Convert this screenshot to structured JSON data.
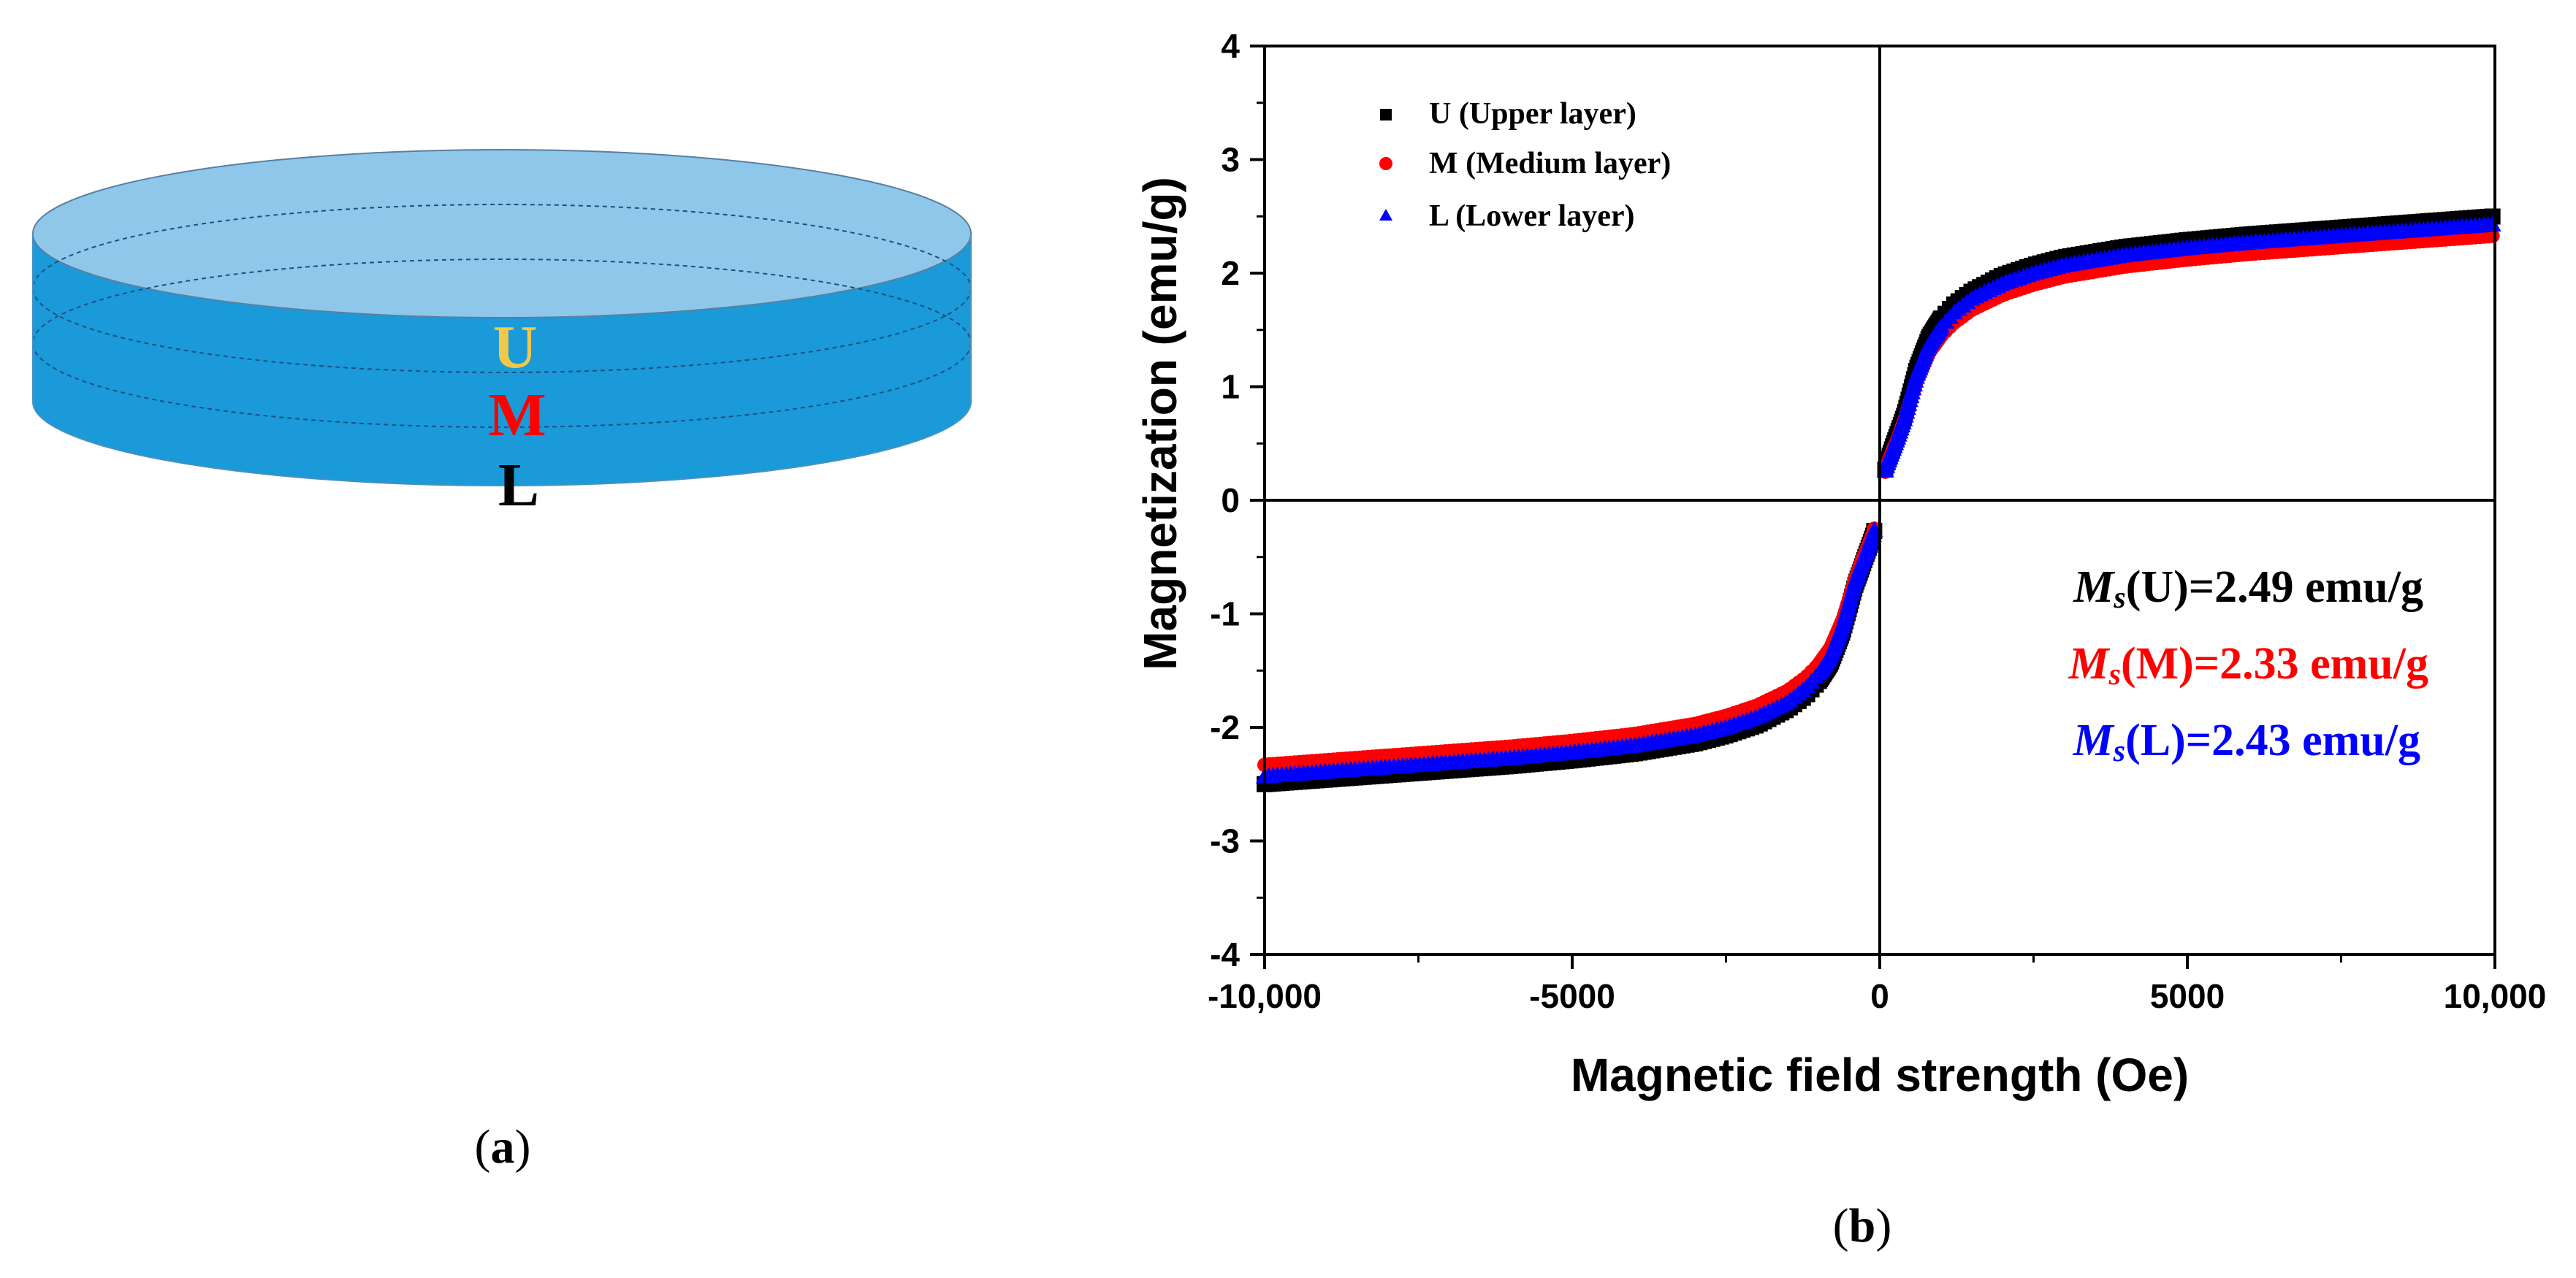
{
  "panel_a": {
    "caption_open": "(",
    "caption_letter": "a",
    "caption_close": ")",
    "layer_labels": {
      "upper": "U",
      "medium": "M",
      "lower": "L"
    },
    "colors": {
      "upper": "#f2c84b",
      "medium": "#ff0000",
      "lower": "#000000",
      "dish_top": "#8ec7ea",
      "dish_side": "#1a9ad8"
    }
  },
  "panel_b": {
    "caption_open": "(",
    "caption_letter": "b",
    "caption_close": ")"
  },
  "chart_data": {
    "type": "scatter",
    "title": "",
    "xlabel": "Magnetic field strength (Oe)",
    "ylabel": "Magnetization (emu/g)",
    "xlim": [
      -10000,
      10000
    ],
    "ylim": [
      -4,
      4
    ],
    "x_ticks": [
      -10000,
      -5000,
      0,
      5000,
      10000
    ],
    "x_tick_labels": [
      "-10,000",
      "-5000",
      "0",
      "5000",
      "10,000"
    ],
    "y_ticks": [
      -4,
      -3,
      -2,
      -1,
      0,
      1,
      2,
      3,
      4
    ],
    "y_tick_labels": [
      "-4",
      "-3",
      "-2",
      "-1",
      "0",
      "1",
      "2",
      "3",
      "4"
    ],
    "legend_position": "top-left",
    "x": [
      -10000,
      -9000,
      -8000,
      -7000,
      -6000,
      -5000,
      -4000,
      -3000,
      -2500,
      -2000,
      -1500,
      -1200,
      -1000,
      -800,
      -600,
      -400,
      -300,
      -200,
      -100,
      0,
      100,
      200,
      300,
      400,
      600,
      800,
      1000,
      1200,
      1500,
      2000,
      2500,
      3000,
      4000,
      5000,
      6000,
      7000,
      8000,
      9000,
      10000
    ],
    "series": [
      {
        "name": "U (Upper layer)",
        "marker": "square",
        "color": "#000000",
        "values": [
          -2.5,
          -2.46,
          -2.42,
          -2.38,
          -2.34,
          -2.29,
          -2.23,
          -2.14,
          -2.07,
          -1.98,
          -1.84,
          -1.72,
          -1.6,
          -1.43,
          -1.15,
          -0.75,
          -0.6,
          -0.45,
          -0.3,
          0,
          0.3,
          0.45,
          0.6,
          0.75,
          1.15,
          1.43,
          1.6,
          1.72,
          1.84,
          1.98,
          2.07,
          2.14,
          2.23,
          2.29,
          2.34,
          2.38,
          2.42,
          2.46,
          2.5
        ]
      },
      {
        "name": "M (Medium layer)",
        "marker": "circle",
        "color": "#ff0000",
        "values": [
          -2.33,
          -2.29,
          -2.25,
          -2.21,
          -2.17,
          -2.12,
          -2.06,
          -1.97,
          -1.9,
          -1.81,
          -1.68,
          -1.56,
          -1.45,
          -1.3,
          -1.05,
          -0.7,
          -0.55,
          -0.42,
          -0.28,
          0,
          0.28,
          0.42,
          0.55,
          0.7,
          1.05,
          1.3,
          1.45,
          1.56,
          1.68,
          1.81,
          1.9,
          1.97,
          2.06,
          2.12,
          2.17,
          2.21,
          2.25,
          2.29,
          2.33
        ]
      },
      {
        "name": "L (Lower layer)",
        "marker": "triangle",
        "color": "#0000ff",
        "values": [
          -2.43,
          -2.39,
          -2.35,
          -2.31,
          -2.27,
          -2.22,
          -2.16,
          -2.07,
          -2.0,
          -1.91,
          -1.78,
          -1.65,
          -1.53,
          -1.37,
          -1.1,
          -0.72,
          -0.57,
          -0.43,
          -0.29,
          0,
          0.29,
          0.43,
          0.57,
          0.72,
          1.1,
          1.37,
          1.53,
          1.65,
          1.78,
          1.91,
          2.0,
          2.07,
          2.16,
          2.22,
          2.27,
          2.31,
          2.35,
          2.39,
          2.43
        ]
      }
    ],
    "annotations": [
      {
        "symbol": "M",
        "subscript": "s",
        "text": "(U)=2.49 emu/g",
        "color": "#000000"
      },
      {
        "symbol": "M",
        "subscript": "s",
        "text": "(M)=2.33 emu/g",
        "color": "#ff0000"
      },
      {
        "symbol": "M",
        "subscript": "s",
        "text": "(L)=2.43 emu/g",
        "color": "#0000ff"
      }
    ]
  }
}
